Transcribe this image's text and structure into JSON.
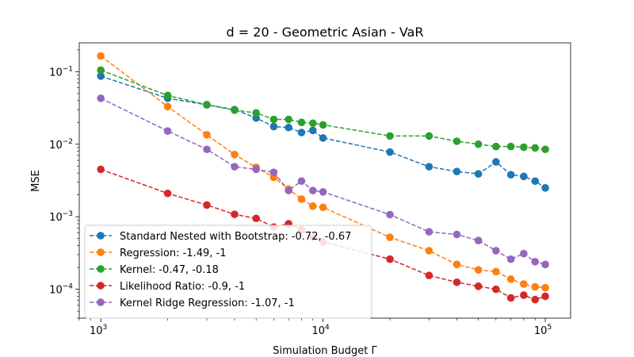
{
  "chart_data": {
    "type": "line",
    "title": "d = 20 - Geometric Asian - VaR",
    "xlabel": "Simulation Budget Γ",
    "ylabel": "MSE",
    "xscale": "log",
    "yscale": "log",
    "xlim": [
      800,
      130000
    ],
    "ylim": [
      4e-05,
      0.25
    ],
    "x_ticks": [
      {
        "value": 1000,
        "base": "10",
        "exp": "3"
      },
      {
        "value": 10000,
        "base": "10",
        "exp": "4"
      },
      {
        "value": 100000,
        "base": "10",
        "exp": "5"
      }
    ],
    "y_ticks": [
      {
        "value": 0.0001,
        "base": "10",
        "exp": "−4"
      },
      {
        "value": 0.001,
        "base": "10",
        "exp": "−3"
      },
      {
        "value": 0.01,
        "base": "10",
        "exp": "−2"
      },
      {
        "value": 0.1,
        "base": "10",
        "exp": "−1"
      }
    ],
    "grid": false,
    "legend_position": "lower-left",
    "x": [
      1000,
      2000,
      3000,
      4000,
      5000,
      6000,
      7000,
      8000,
      9000,
      10000,
      20000,
      30000,
      40000,
      50000,
      60000,
      70000,
      80000,
      90000,
      100000
    ],
    "series": [
      {
        "name": "Standard Nested with Bootstrap: -0.72, -0.67",
        "color": "#1f77b4",
        "values": [
          0.087,
          0.043,
          0.035,
          0.03,
          0.023,
          0.0175,
          0.017,
          0.0145,
          0.0155,
          0.0122,
          0.0078,
          0.0049,
          0.0042,
          0.0039,
          0.0057,
          0.0038,
          0.0036,
          0.0031,
          0.0025
        ]
      },
      {
        "name": "Regression: -1.49, -1",
        "color": "#ff7f0e",
        "values": [
          0.165,
          0.033,
          0.0135,
          0.0072,
          0.0048,
          0.0035,
          0.0024,
          0.00175,
          0.0014,
          0.00135,
          0.00052,
          0.00034,
          0.00022,
          0.000185,
          0.000175,
          0.000138,
          0.000118,
          0.000108,
          0.000105
        ]
      },
      {
        "name": "Kernel: -0.47, -0.18",
        "color": "#2ca02c",
        "values": [
          0.105,
          0.047,
          0.035,
          0.0295,
          0.027,
          0.022,
          0.022,
          0.02,
          0.0195,
          0.0185,
          0.013,
          0.013,
          0.011,
          0.01,
          0.0093,
          0.0093,
          0.0091,
          0.0089,
          0.0085
        ]
      },
      {
        "name": "Likelihood Ratio: -0.9, -1",
        "color": "#d62728",
        "values": [
          0.0045,
          0.0021,
          0.00145,
          0.00108,
          0.00095,
          0.00072,
          0.0008,
          0.00066,
          0.00052,
          0.00045,
          0.00026,
          0.000155,
          0.000125,
          0.00011,
          0.0001,
          7.6e-05,
          8.3e-05,
          7.2e-05,
          8e-05
        ]
      },
      {
        "name": "Kernel Ridge Regression: -1.07, -1",
        "color": "#9467bd",
        "values": [
          0.043,
          0.0152,
          0.0085,
          0.0049,
          0.0045,
          0.0041,
          0.0023,
          0.0031,
          0.0023,
          0.0022,
          0.00107,
          0.00062,
          0.00057,
          0.00047,
          0.00034,
          0.00026,
          0.00031,
          0.00024,
          0.00022
        ]
      }
    ]
  }
}
